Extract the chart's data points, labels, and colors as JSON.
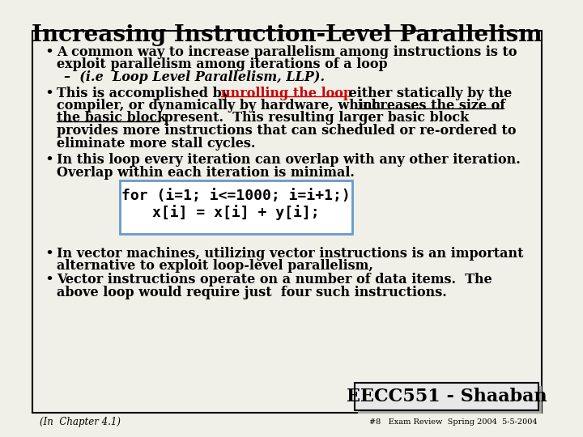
{
  "title": "Increasing Instruction-Level Parallelism",
  "bg_color": "#f0f0e8",
  "border_color": "#000000",
  "title_fontsize": 20,
  "body_fontsize": 11.5,
  "code_fontsize": 13,
  "footer_fontsize": 8.5,
  "bullet1_line1": "A common way to increase parallelism among instructions is to",
  "bullet1_line2": "exploit parallelism among iterations of a loop",
  "bullet1_sub": "–  (i.e  Loop Level Parallelism, LLP).",
  "bullet2_prefix": "This is accomplished by ",
  "bullet2_link": "unrolling the loop",
  "bullet2_middle": " either statically by the",
  "bullet2_line2a": "compiler, or dynamically by hardware, which ",
  "bullet2_line2b": "increases the size of",
  "bullet2_line3a": "the basic block",
  "bullet2_line3b": " present.  This resulting larger basic block",
  "bullet2_line4": "provides more instructions that can scheduled or re-ordered to",
  "bullet2_line5": "eliminate more stall cycles.",
  "bullet3_line1": "In this loop every iteration can overlap with any other iteration.",
  "bullet3_line2": "Overlap within each iteration is minimal.",
  "code_line1": "for (i=1; i<=1000; i=i+1;)",
  "code_line2": "x[i] = x[i] + y[i];",
  "bullet4_line1": "In vector machines, utilizing vector instructions is an important",
  "bullet4_line2": "alternative to exploit loop-level parallelism,",
  "bullet5_line1": "Vector instructions operate on a number of data items.  The",
  "bullet5_line2": "above loop would require just  four such instructions.",
  "footer_left": "(In  Chapter 4.1)",
  "footer_right": "#8   Exam Review  Spring 2004  5-5-2004",
  "stamp_text": "EECC551 - Shaaban",
  "stamp_fontsize": 16,
  "link_color": "#cc0000",
  "code_box_color": "#6699cc",
  "stamp_bg": "#e8e8e8"
}
